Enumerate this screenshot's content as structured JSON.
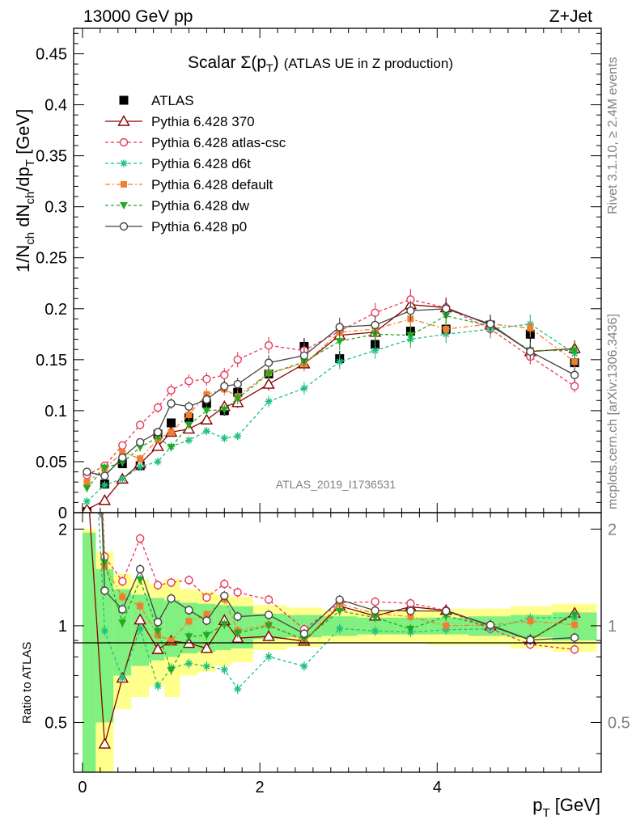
{
  "header": {
    "left": "13000 GeV pp",
    "right": "Z+Jet"
  },
  "side": {
    "rivet": "Rivet 3.1.10, ≥ 2.4M events",
    "mcplots": "mcplots.cern.ch [arXiv:1306.3436]"
  },
  "chart_data": {
    "type": "line",
    "title": "Scalar Σ(p_T) (ATLAS UE in Z production)",
    "analysis_tag": "ATLAS_2019_I1736531",
    "xlabel": "p_T [GeV]",
    "ylabel": "1/N_ch dN_ch/dp_T [GeV]",
    "ratio_ylabel": "Ratio to ATLAS",
    "xlim": [
      -0.1,
      5.85
    ],
    "ylim": [
      0,
      0.475
    ],
    "ratio_ylim": [
      0.35,
      2.25
    ],
    "x_ticks": [
      "0",
      "2",
      "4"
    ],
    "y_ticks": [
      "0",
      "0.05",
      "0.1",
      "0.15",
      "0.2",
      "0.25",
      "0.3",
      "0.35",
      "0.4",
      "0.45"
    ],
    "ratio_ticks": [
      "0.5",
      "1",
      "2"
    ],
    "legend_position": "top-left",
    "x": [
      0.05,
      0.25,
      0.45,
      0.65,
      0.85,
      1.0,
      1.2,
      1.4,
      1.6,
      1.75,
      2.1,
      2.5,
      2.9,
      3.3,
      3.7,
      4.1,
      4.6,
      5.05,
      5.55
    ],
    "band": {
      "inner": [
        0.95,
        0.5,
        0.3,
        0.25,
        0.22,
        0.2,
        0.18,
        0.17,
        0.16,
        0.15,
        0.09,
        0.08,
        0.07,
        0.06,
        0.06,
        0.06,
        0.07,
        0.08,
        0.1
      ],
      "outer": [
        1.0,
        0.7,
        0.45,
        0.4,
        0.35,
        0.4,
        0.3,
        0.28,
        0.25,
        0.23,
        0.16,
        0.14,
        0.12,
        0.12,
        0.12,
        0.13,
        0.13,
        0.15,
        0.17
      ]
    },
    "series": [
      {
        "name": "ATLAS",
        "color": "#000000",
        "marker": "square",
        "dash": "none",
        "values": [
          0.001,
          0.028,
          0.048,
          0.046,
          0.077,
          0.088,
          0.093,
          0.107,
          0.1,
          0.118,
          0.136,
          0.163,
          0.151,
          0.165,
          0.178,
          0.18,
          0.184,
          0.175,
          0.147
        ]
      },
      {
        "name": "Pythia 6.428 370",
        "color": "#8b0000",
        "marker": "triangle-open",
        "dash": "none",
        "values": [
          0.003,
          0.012,
          0.033,
          0.048,
          0.065,
          0.079,
          0.082,
          0.091,
          0.104,
          0.108,
          0.126,
          0.146,
          0.174,
          0.177,
          0.204,
          0.201,
          0.184,
          0.158,
          0.161
        ]
      },
      {
        "name": "Pythia 6.428 atlas-csc",
        "color": "#e8385a",
        "marker": "circle-open",
        "dash": "4,3",
        "values": [
          0.037,
          0.046,
          0.066,
          0.086,
          0.103,
          0.12,
          0.129,
          0.131,
          0.135,
          0.15,
          0.164,
          0.159,
          0.178,
          0.196,
          0.209,
          0.201,
          0.18,
          0.153,
          0.124
        ]
      },
      {
        "name": "Pythia 6.428 d6t",
        "color": "#20c080",
        "marker": "star",
        "dash": "4,3",
        "values": [
          0.011,
          0.027,
          0.033,
          0.045,
          0.05,
          0.065,
          0.071,
          0.08,
          0.073,
          0.075,
          0.109,
          0.122,
          0.148,
          0.159,
          0.17,
          0.175,
          0.18,
          0.185,
          0.156
        ]
      },
      {
        "name": "Pythia 6.428 default",
        "color": "#f08030",
        "marker": "square-small",
        "dash": "6,3,2,3",
        "values": [
          0.03,
          0.043,
          0.059,
          0.053,
          0.072,
          0.079,
          0.096,
          0.116,
          0.121,
          0.114,
          0.137,
          0.146,
          0.177,
          0.18,
          0.19,
          0.18,
          0.185,
          0.181,
          0.148
        ]
      },
      {
        "name": "Pythia 6.428 dw",
        "color": "#22aa22",
        "marker": "triangle-down",
        "dash": "4,3",
        "values": [
          0.024,
          0.044,
          0.049,
          0.064,
          0.074,
          0.064,
          0.086,
          0.1,
          0.101,
          0.112,
          0.136,
          0.148,
          0.168,
          0.175,
          0.174,
          0.193,
          0.183,
          0.159,
          0.159
        ]
      },
      {
        "name": "Pythia 6.428 p0",
        "color": "#444444",
        "marker": "circle-open",
        "dash": "none",
        "values": [
          0.04,
          0.036,
          0.054,
          0.069,
          0.079,
          0.107,
          0.104,
          0.111,
          0.124,
          0.126,
          0.147,
          0.154,
          0.182,
          0.184,
          0.198,
          0.2,
          0.185,
          0.158,
          0.135
        ]
      }
    ]
  }
}
